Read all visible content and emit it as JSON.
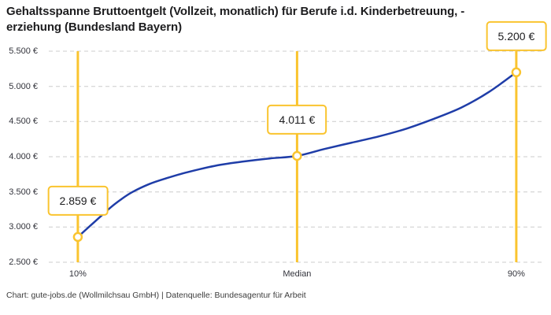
{
  "title": "Gehaltsspanne Bruttoentgelt (Vollzeit, monatlich) für Berufe i.d. Kinderbetreuung, -\nerziehung (Bundesland Bayern)",
  "footer": "Chart: gute-jobs.de (Wollmilchsau GmbH) | Datenquelle: Bundesagentur für Arbeit",
  "chart_data": {
    "type": "line",
    "title": "Gehaltsspanne Bruttoentgelt (Vollzeit, monatlich) für Berufe i.d. Kinderbetreuung, -erziehung (Bundesland Bayern)",
    "unit": "€",
    "x_categories": [
      "10%",
      "Median",
      "90%"
    ],
    "points": [
      {
        "category": "10%",
        "percentile": 10,
        "value": 2859,
        "label": "2.859 €"
      },
      {
        "category": "Median",
        "percentile": 50,
        "value": 4011,
        "label": "4.011 €"
      },
      {
        "category": "90%",
        "percentile": 90,
        "value": 5200,
        "label": "5.200 €"
      }
    ],
    "curve_points": [
      [
        10,
        2859
      ],
      [
        12,
        3000
      ],
      [
        14,
        3140
      ],
      [
        16,
        3280
      ],
      [
        18,
        3400
      ],
      [
        20,
        3500
      ],
      [
        23,
        3610
      ],
      [
        26,
        3690
      ],
      [
        30,
        3780
      ],
      [
        35,
        3870
      ],
      [
        40,
        3930
      ],
      [
        45,
        3975
      ],
      [
        50,
        4011
      ],
      [
        55,
        4110
      ],
      [
        60,
        4200
      ],
      [
        65,
        4290
      ],
      [
        70,
        4400
      ],
      [
        75,
        4540
      ],
      [
        80,
        4700
      ],
      [
        85,
        4920
      ],
      [
        90,
        5200
      ]
    ],
    "y_axis": [
      {
        "value": 5500,
        "label": "5.500 €"
      },
      {
        "value": 5000,
        "label": "5.000 €"
      },
      {
        "value": 4500,
        "label": "4.500 €"
      },
      {
        "value": 4000,
        "label": "4.000 €"
      },
      {
        "value": 3500,
        "label": "3.500 €"
      },
      {
        "value": 3000,
        "label": "3.000 €"
      },
      {
        "value": 2500,
        "label": "2.500 €"
      }
    ],
    "ylim": [
      2500,
      5500
    ],
    "xlim_percentile": [
      4.7,
      94.9
    ],
    "grid": "horizontal-dashed",
    "legend": "none",
    "colors": {
      "accent_yellow": "#FAC42F",
      "line_blue": "#1F3DA8",
      "grid": "#CCCCCC",
      "text_dark": "#1D1D1F",
      "text_axis": "#33343C",
      "background": "#FFFFFF"
    }
  }
}
